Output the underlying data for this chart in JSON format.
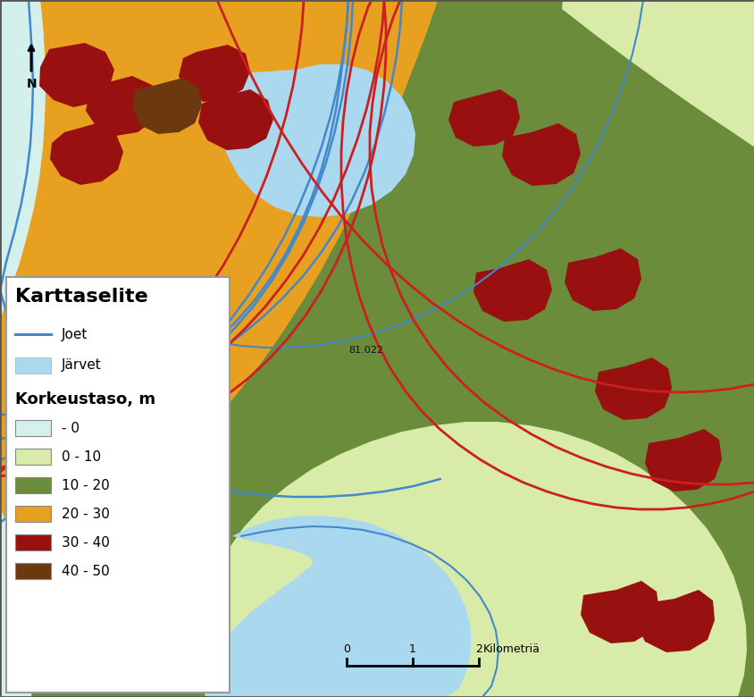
{
  "legend_title": "Karttaselite",
  "legend_subtitle": "Korkeustaso, m",
  "legend_items": [
    {
      "label": "- 0",
      "color": "#d4f0ec"
    },
    {
      "label": "0 - 10",
      "color": "#d8eba8"
    },
    {
      "label": "10 - 20",
      "color": "#6b8c3a"
    },
    {
      "label": "20 - 30",
      "color": "#e8a020"
    },
    {
      "label": "30 - 40",
      "color": "#991010"
    },
    {
      "label": "40 - 50",
      "color": "#6b3810"
    }
  ],
  "legend_line_label": "Joet",
  "legend_lake_label": "Järvet",
  "scalebar_ticks": [
    "0",
    "1",
    "2 Kilometriä"
  ],
  "annotation_text": "81.022",
  "colors": {
    "pale_cyan": "#d4f0ec",
    "light_green": "#d8eba8",
    "med_green": "#6b8c3a",
    "orange": "#e8a020",
    "dark_red": "#991010",
    "dark_brown": "#6b3810",
    "lake_blue": "#aad8ee",
    "river_blue": "#4488cc",
    "border_red": "#cc2020"
  }
}
